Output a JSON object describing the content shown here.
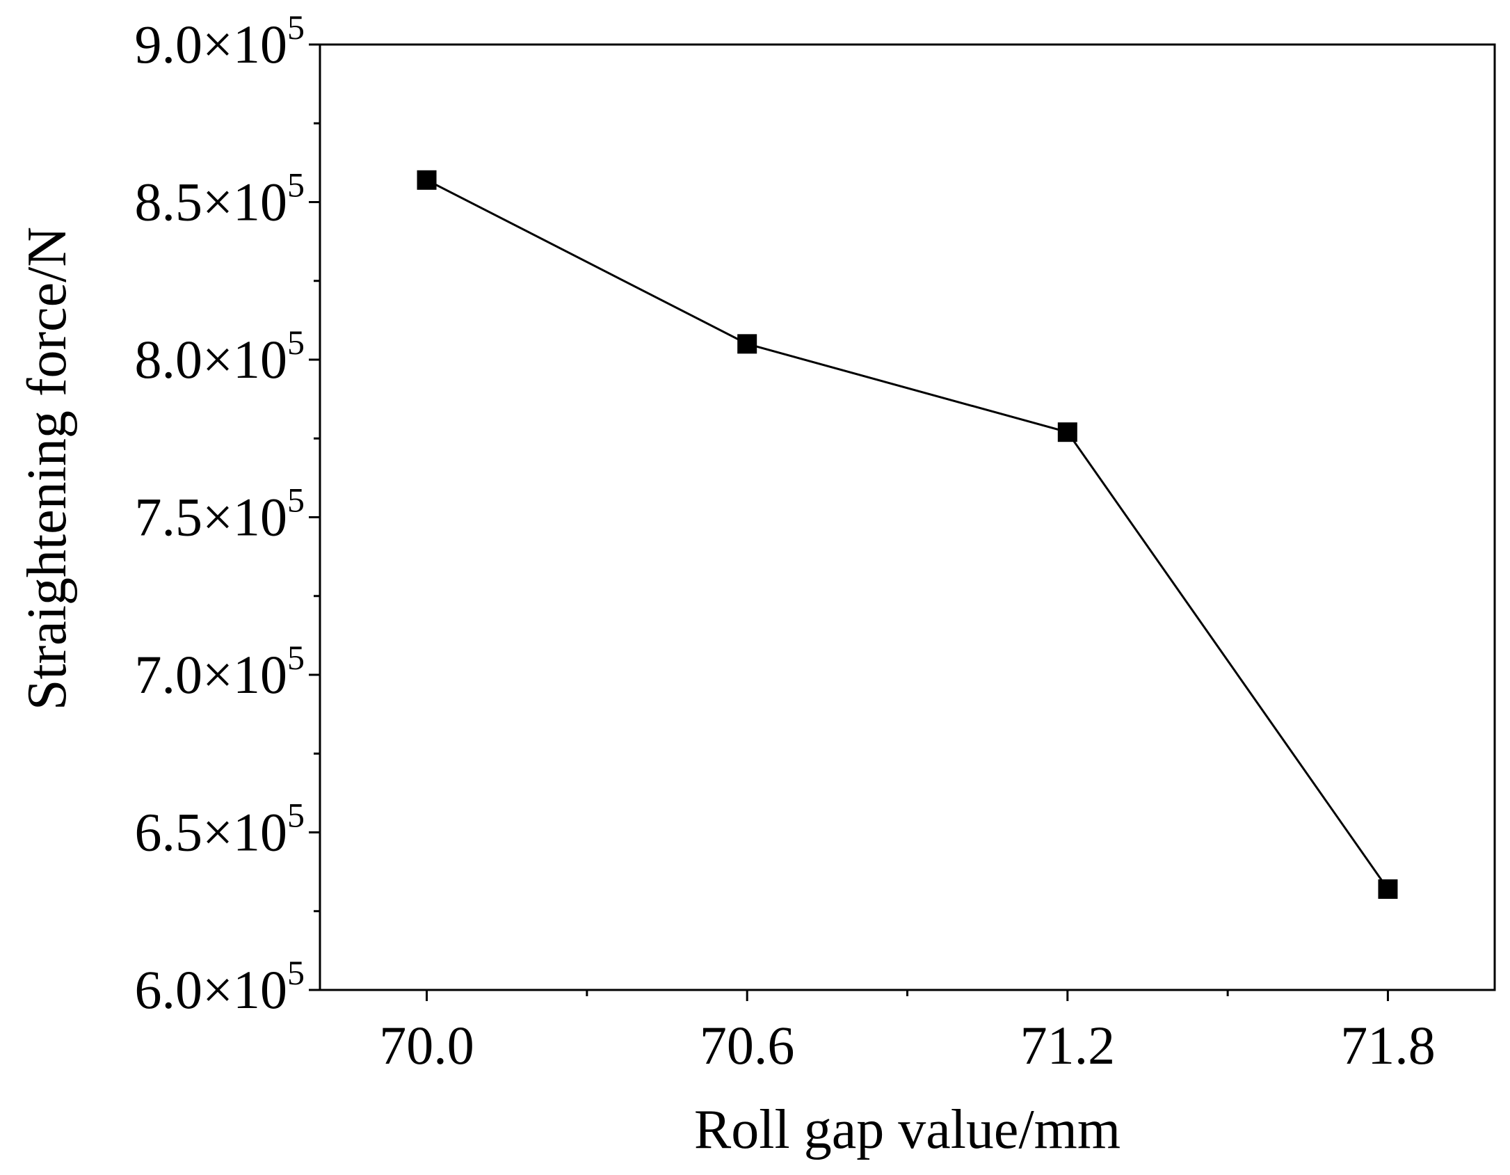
{
  "chart_data": {
    "type": "line",
    "title": "",
    "xlabel": "Roll gap value/mm",
    "ylabel": "Straightening force/N",
    "x": [
      70.0,
      70.6,
      71.2,
      71.8
    ],
    "x_tick_labels": [
      "70.0",
      "70.6",
      "71.2",
      "71.8"
    ],
    "y_tick_values": [
      600000,
      650000,
      700000,
      750000,
      800000,
      850000,
      900000
    ],
    "y_tick_labels": [
      {
        "mantissa": "6.0",
        "exponent": "5"
      },
      {
        "mantissa": "6.5",
        "exponent": "5"
      },
      {
        "mantissa": "7.0",
        "exponent": "5"
      },
      {
        "mantissa": "7.5",
        "exponent": "5"
      },
      {
        "mantissa": "8.0",
        "exponent": "5"
      },
      {
        "mantissa": "8.5",
        "exponent": "5"
      },
      {
        "mantissa": "9.0",
        "exponent": "5"
      }
    ],
    "y_tick_separator": "×10",
    "series": [
      {
        "name": "Straightening force",
        "values": [
          857000,
          805000,
          777000,
          632000
        ],
        "marker": "square",
        "color": "#000000"
      }
    ],
    "xlim": [
      69.8,
      72.0
    ],
    "ylim": [
      600000,
      900000
    ],
    "grid": false,
    "legend": "none"
  }
}
